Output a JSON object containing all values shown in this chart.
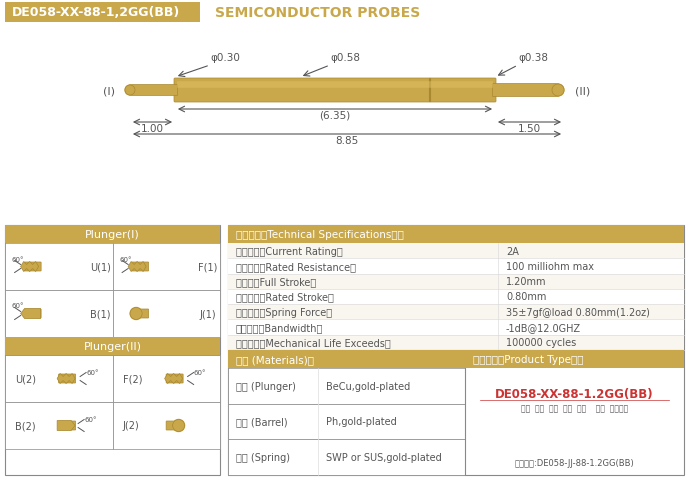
{
  "title_box_text": "DE058-XX-88-1,2GG(BB)",
  "title_box_color": "#C9A84C",
  "title_text_color": "#FFFFFF",
  "header_text": "SEMICONDUCTOR PROBES",
  "header_text_color": "#C9A84C",
  "bg_color": "#FFFFFF",
  "probe_gold": "#C9A84C",
  "probe_dark_gold": "#A88830",
  "dim_color": "#333333",
  "table_header_color": "#C9A84C",
  "table_border_color": "#888888",
  "specs": [
    [
      "额定电流（Current Rating）",
      "2A"
    ],
    [
      "额定电阻（Rated Resistance）",
      "100 milliohm max"
    ],
    [
      "满行程（Full Stroke）",
      "1.20mm"
    ],
    [
      "额定行程（Rated Stroke）",
      "0.80mm"
    ],
    [
      "额定弹力（Spring Force）",
      "35±7gf@load 0.80mm(1.2oz)"
    ],
    [
      "频率带宽（Bandwidth）",
      "-1dB@12.0GHZ"
    ],
    [
      "测试寿命（Mechanical Life Exceeds）",
      "100000 cycles"
    ]
  ],
  "materials": [
    [
      "针头 (Plunger)",
      "BeCu,gold-plated"
    ],
    [
      "针管 (Barrel)",
      "Ph,gold-plated"
    ],
    [
      "弹簧 (Spring)",
      "SWP or SUS,gold-plated"
    ]
  ],
  "plunger1_types": [
    "U(1)",
    "F(1)",
    "B(1)",
    "J(1)"
  ],
  "plunger2_types": [
    "U(2)",
    "F(2)",
    "B(2)",
    "J(2)"
  ],
  "product_code": "DE058-XX-88-1.2GG(BB)",
  "product_labels": "系列  规格  头型  归长  弹力    镀金  针头材质",
  "order_example": "订购举例:DE058-JJ-88-1.2GG(BB)",
  "dim_030": "φ0.30",
  "dim_058": "φ0.58",
  "dim_038": "φ0.38",
  "dim_635": "(6.35)",
  "dim_100": "1.00",
  "dim_150": "1.50",
  "dim_885": "8.85",
  "label_I": "(I)",
  "label_II": "(II)",
  "spec_header": "技术要求（Technical Specifications）：",
  "mat_header": "材质 (Materials)：",
  "prod_header": "成品型号（Product Type）："
}
